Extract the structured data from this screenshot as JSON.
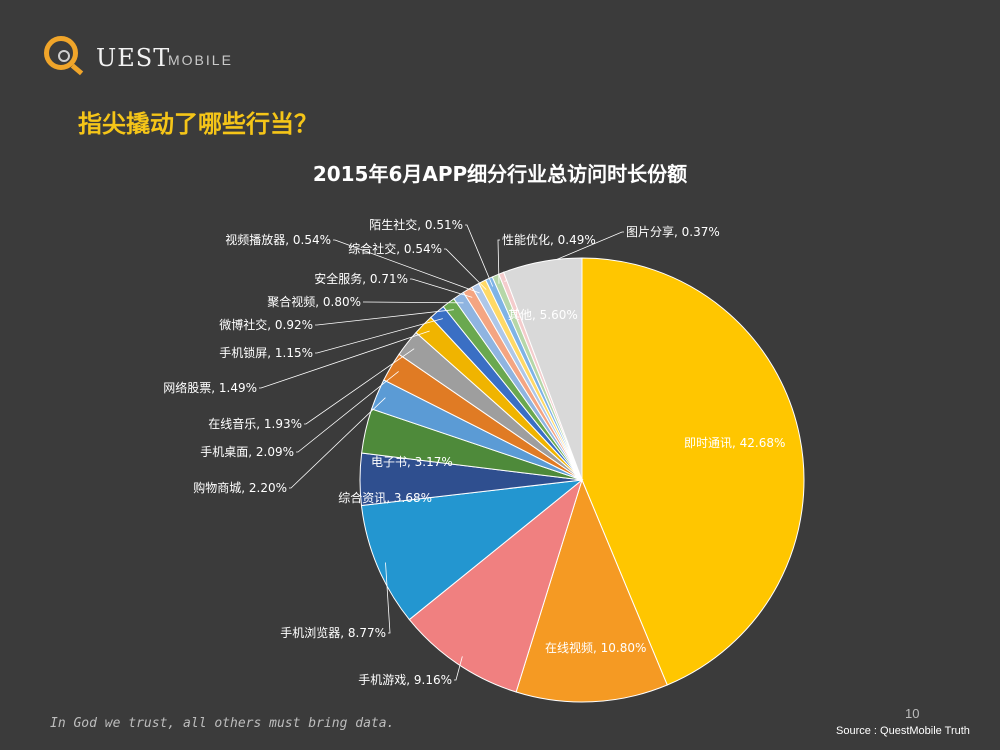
{
  "logo": {
    "brand_letter": "Q",
    "brand_rest": "UEST",
    "brand_sub": "MOBILE"
  },
  "heading": "指尖撬动了哪些行当？",
  "colors": {
    "background": "#3b3b3b",
    "accent": "#f5c518",
    "logo_orange": "#f0a52a"
  },
  "chart_data": {
    "type": "pie",
    "title": "2015年6月APP细分行业总访问时长份额",
    "start_angle": 0,
    "direction": "clockwise",
    "slices": [
      {
        "name": "即时通讯",
        "value": 42.68,
        "label": "即时通讯, 42.68%",
        "color": "#ffc600"
      },
      {
        "name": "在线视频",
        "value": 10.8,
        "label": "在线视频, 10.80%",
        "color": "#f59a23"
      },
      {
        "name": "手机游戏",
        "value": 9.16,
        "label": "手机游戏, 9.16%",
        "color": "#f08080"
      },
      {
        "name": "手机浏览器",
        "value": 8.77,
        "label": "手机浏览器, 8.77%",
        "color": "#2396d0"
      },
      {
        "name": "综合资讯",
        "value": 3.68,
        "label": "综合资讯, 3.68%",
        "color": "#2f4f8f"
      },
      {
        "name": "电子书",
        "value": 3.17,
        "label": "电子书, 3.17%",
        "color": "#4e8a3a"
      },
      {
        "name": "购物商城",
        "value": 2.2,
        "label": "购物商城, 2.20%",
        "color": "#5b9bd5"
      },
      {
        "name": "手机桌面",
        "value": 2.09,
        "label": "手机桌面, 2.09%",
        "color": "#e07b24"
      },
      {
        "name": "在线音乐",
        "value": 1.93,
        "label": "在线音乐, 1.93%",
        "color": "#9e9e9e"
      },
      {
        "name": "网络股票",
        "value": 1.49,
        "label": "网络股票, 1.49%",
        "color": "#f0b400"
      },
      {
        "name": "手机锁屏",
        "value": 1.15,
        "label": "手机锁屏, 1.15%",
        "color": "#3a6fc4"
      },
      {
        "name": "微博社交",
        "value": 0.92,
        "label": "微博社交, 0.92%",
        "color": "#6aa84f"
      },
      {
        "name": "聚合视频",
        "value": 0.8,
        "label": "聚合视频, 0.80%",
        "color": "#8fb4e0"
      },
      {
        "name": "安全服务",
        "value": 0.71,
        "label": "安全服务, 0.71%",
        "color": "#f4a582"
      },
      {
        "name": "视频播放器",
        "value": 0.54,
        "label": "视频播放器, 0.54%",
        "color": "#aec7e8"
      },
      {
        "name": "综合社交",
        "value": 0.54,
        "label": "综合社交, 0.54%",
        "color": "#ffd966"
      },
      {
        "name": "陌生社交",
        "value": 0.51,
        "label": "陌生社交, 0.51%",
        "color": "#7fb3e6"
      },
      {
        "name": "性能优化",
        "value": 0.49,
        "label": "性能优化, 0.49%",
        "color": "#b6d7a8"
      },
      {
        "name": "图片分享",
        "value": 0.37,
        "label": "图片分享, 0.37%",
        "color": "#f4cccc"
      },
      {
        "name": "其他",
        "value": 5.6,
        "label": "其他, 5.60%",
        "color": "#d9d9d9"
      }
    ]
  },
  "footer": {
    "quote": "In God we trust, all others must bring data.",
    "page_number": "10",
    "source": "Source : QuestMobile Truth"
  }
}
